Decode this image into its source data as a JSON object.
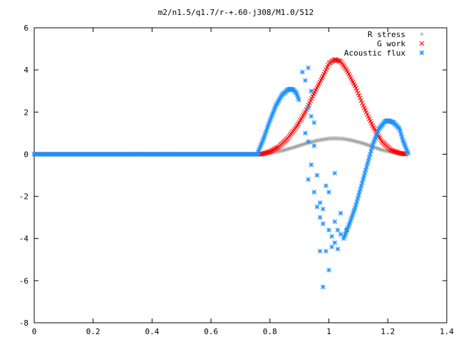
{
  "chart_data": {
    "type": "scatter",
    "title": "m2/n1.5/q1.7/r-+.60-j308/M1.0/512",
    "xlabel": "",
    "ylabel": "",
    "xlim": [
      0,
      1.4
    ],
    "ylim": [
      -8,
      6
    ],
    "grid": false,
    "legend_position": "top-right",
    "x_ticks": [
      "0",
      "0.2",
      "0.4",
      "0.6",
      "0.8",
      "1",
      "1.2",
      "1.4"
    ],
    "y_ticks": [
      "6",
      "4",
      "2",
      "0",
      "-2",
      "-4",
      "-6",
      "-8"
    ],
    "series": [
      {
        "name": "R stress",
        "marker": "plus",
        "color": "#a0a0a0",
        "description": "zero until x≈0.77, then rises smoothly to ≈0.75 at x≈1.02, falls back to ≈0 by x≈1.26",
        "points": [
          [
            0.77,
            0.0
          ],
          [
            0.8,
            0.05
          ],
          [
            0.84,
            0.16
          ],
          [
            0.88,
            0.32
          ],
          [
            0.92,
            0.5
          ],
          [
            0.96,
            0.65
          ],
          [
            1.0,
            0.74
          ],
          [
            1.02,
            0.75
          ],
          [
            1.05,
            0.73
          ],
          [
            1.08,
            0.65
          ],
          [
            1.12,
            0.5
          ],
          [
            1.15,
            0.35
          ],
          [
            1.18,
            0.2
          ],
          [
            1.22,
            0.08
          ],
          [
            1.26,
            0.0
          ]
        ]
      },
      {
        "name": "G work",
        "marker": "cross",
        "color": "#ff0000",
        "description": "zero until x≈0.77, Gaussian-like peak of ≈4.5 at x≈1.02, back to ≈0 by x≈1.26",
        "points": [
          [
            0.77,
            0.0
          ],
          [
            0.8,
            0.12
          ],
          [
            0.83,
            0.35
          ],
          [
            0.86,
            0.75
          ],
          [
            0.89,
            1.3
          ],
          [
            0.92,
            2.0
          ],
          [
            0.95,
            2.9
          ],
          [
            0.98,
            3.7
          ],
          [
            1.0,
            4.3
          ],
          [
            1.02,
            4.5
          ],
          [
            1.04,
            4.4
          ],
          [
            1.06,
            4.0
          ],
          [
            1.09,
            3.2
          ],
          [
            1.12,
            2.2
          ],
          [
            1.15,
            1.3
          ],
          [
            1.18,
            0.6
          ],
          [
            1.21,
            0.2
          ],
          [
            1.24,
            0.05
          ],
          [
            1.26,
            0.0
          ]
        ]
      },
      {
        "name": "Acoustic flux",
        "marker": "star",
        "color": "#1e90ff",
        "description": "zero until x≈0.76, hump to ≈3.1 at x≈0.87, scattered points between x≈0.9 and 1.05, trough near -4 around x≈1.05, second hump ≈1.6 at x≈1.2, back to 0 by x≈1.27",
        "curve": [
          [
            0.76,
            0.1
          ],
          [
            0.78,
            0.8
          ],
          [
            0.8,
            1.6
          ],
          [
            0.82,
            2.3
          ],
          [
            0.84,
            2.8
          ],
          [
            0.86,
            3.05
          ],
          [
            0.87,
            3.1
          ],
          [
            0.88,
            3.05
          ],
          [
            0.89,
            2.9
          ],
          [
            0.9,
            2.5
          ],
          [
            1.05,
            -4.0
          ],
          [
            1.07,
            -3.3
          ],
          [
            1.09,
            -2.5
          ],
          [
            1.11,
            -1.5
          ],
          [
            1.13,
            -0.5
          ],
          [
            1.15,
            0.5
          ],
          [
            1.17,
            1.2
          ],
          [
            1.19,
            1.55
          ],
          [
            1.2,
            1.6
          ],
          [
            1.22,
            1.5
          ],
          [
            1.24,
            1.2
          ],
          [
            1.25,
            0.7
          ],
          [
            1.27,
            0.0
          ]
        ],
        "scatter": [
          [
            0.91,
            3.9
          ],
          [
            0.92,
            3.5
          ],
          [
            0.93,
            4.1
          ],
          [
            0.94,
            3.0
          ],
          [
            0.93,
            2.2
          ],
          [
            0.94,
            1.8
          ],
          [
            0.95,
            1.5
          ],
          [
            0.92,
            1.0
          ],
          [
            0.93,
            0.6
          ],
          [
            0.95,
            0.4
          ],
          [
            0.94,
            -0.5
          ],
          [
            0.93,
            -1.2
          ],
          [
            0.96,
            -1.0
          ],
          [
            0.95,
            -1.8
          ],
          [
            0.97,
            -2.3
          ],
          [
            0.96,
            -2.5
          ],
          [
            0.98,
            -2.6
          ],
          [
            0.97,
            -3.0
          ],
          [
            0.99,
            -1.5
          ],
          [
            1.0,
            -1.8
          ],
          [
            0.98,
            -3.3
          ],
          [
            1.0,
            -3.6
          ],
          [
            1.01,
            -3.9
          ],
          [
            0.97,
            -4.6
          ],
          [
            0.99,
            -4.6
          ],
          [
            1.01,
            -4.4
          ],
          [
            1.02,
            -4.2
          ],
          [
            1.03,
            -4.5
          ],
          [
            1.0,
            -5.5
          ],
          [
            0.98,
            -6.3
          ],
          [
            1.02,
            -3.2
          ],
          [
            1.04,
            -3.8
          ],
          [
            1.03,
            -3.6
          ],
          [
            1.06,
            -3.6
          ],
          [
            1.02,
            -0.9
          ],
          [
            1.04,
            -2.8
          ]
        ]
      }
    ]
  }
}
